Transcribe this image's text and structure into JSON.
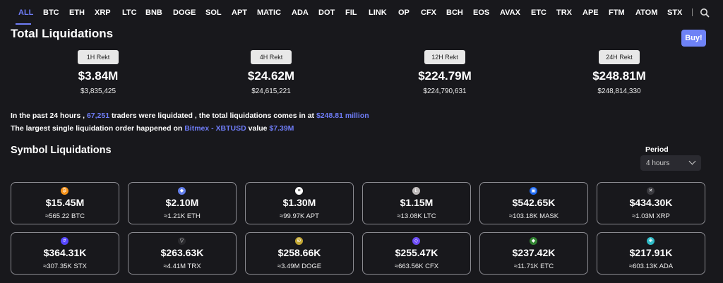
{
  "tabs": [
    "ALL",
    "BTC",
    "ETH",
    "XRP",
    "LTC",
    "BNB",
    "DOGE",
    "SOL",
    "APT",
    "MATIC",
    "ADA",
    "DOT",
    "FIL",
    "LINK",
    "OP",
    "CFX",
    "BCH",
    "EOS",
    "AVAX",
    "ETC",
    "TRX",
    "APE",
    "FTM",
    "ATOM",
    "STX"
  ],
  "active_tab": "ALL",
  "title": "Total Liquidations",
  "buy_label": "Buy!",
  "rekt": [
    {
      "label": "1H Rekt",
      "big": "$3.84M",
      "exact": "$3,835,425"
    },
    {
      "label": "4H Rekt",
      "big": "$24.62M",
      "exact": "$24,615,221"
    },
    {
      "label": "12H Rekt",
      "big": "$224.79M",
      "exact": "$224,790,631"
    },
    {
      "label": "24H Rekt",
      "big": "$248.81M",
      "exact": "$248,814,330"
    }
  ],
  "summary": {
    "l1_a": "In the past 24 hours , ",
    "l1_traders": "67,251",
    "l1_b": " traders were liquidated , the total liquidations comes in at ",
    "l1_total": "$248.81 million",
    "l2_a": "The largest single liquidation order happened on ",
    "l2_exchange": "Bitmex - XBTUSD",
    "l2_b": " value ",
    "l2_value": "$7.39M"
  },
  "section_title": "Symbol Liquidations",
  "period": {
    "label": "Period",
    "value": "4 hours"
  },
  "cards": [
    {
      "value": "$15.45M",
      "sub": "≈565.22 BTC",
      "icon": "bitcoin-icon",
      "color": "#f7931a",
      "glyph": "₿"
    },
    {
      "value": "$2.10M",
      "sub": "≈1.21K ETH",
      "icon": "ethereum-icon",
      "color": "#627eea",
      "glyph": "◆"
    },
    {
      "value": "$1.30M",
      "sub": "≈99.97K APT",
      "icon": "aptos-icon",
      "color": "#ffffff",
      "glyph": "≡"
    },
    {
      "value": "$1.15M",
      "sub": "≈13.08K LTC",
      "icon": "litecoin-icon",
      "color": "#bfbbbb",
      "glyph": "Ł"
    },
    {
      "value": "$542.65K",
      "sub": "≈103.18K MASK",
      "icon": "mask-icon",
      "color": "#1c68f3",
      "glyph": "▣"
    },
    {
      "value": "$434.30K",
      "sub": "≈1.03M XRP",
      "icon": "xrp-icon",
      "color": "#3a3a3f",
      "glyph": "✕"
    },
    {
      "value": "$364.31K",
      "sub": "≈307.35K STX",
      "icon": "stacks-icon",
      "color": "#5546ff",
      "glyph": "#"
    },
    {
      "value": "$263.63K",
      "sub": "≈4.41M TRX",
      "icon": "tron-icon",
      "color": "#2a2a2e",
      "glyph": "▽"
    },
    {
      "value": "$258.66K",
      "sub": "≈3.49M DOGE",
      "icon": "dogecoin-icon",
      "color": "#c2a633",
      "glyph": "Ð"
    },
    {
      "value": "$255.47K",
      "sub": "≈663.56K CFX",
      "icon": "conflux-icon",
      "color": "#6c4cf5",
      "glyph": "◇"
    },
    {
      "value": "$237.42K",
      "sub": "≈11.71K ETC",
      "icon": "ethereum-classic-icon",
      "color": "#328332",
      "glyph": "◆"
    },
    {
      "value": "$217.91K",
      "sub": "≈603.13K ADA",
      "icon": "cardano-icon",
      "color": "#2ebac6",
      "glyph": "❋"
    }
  ]
}
